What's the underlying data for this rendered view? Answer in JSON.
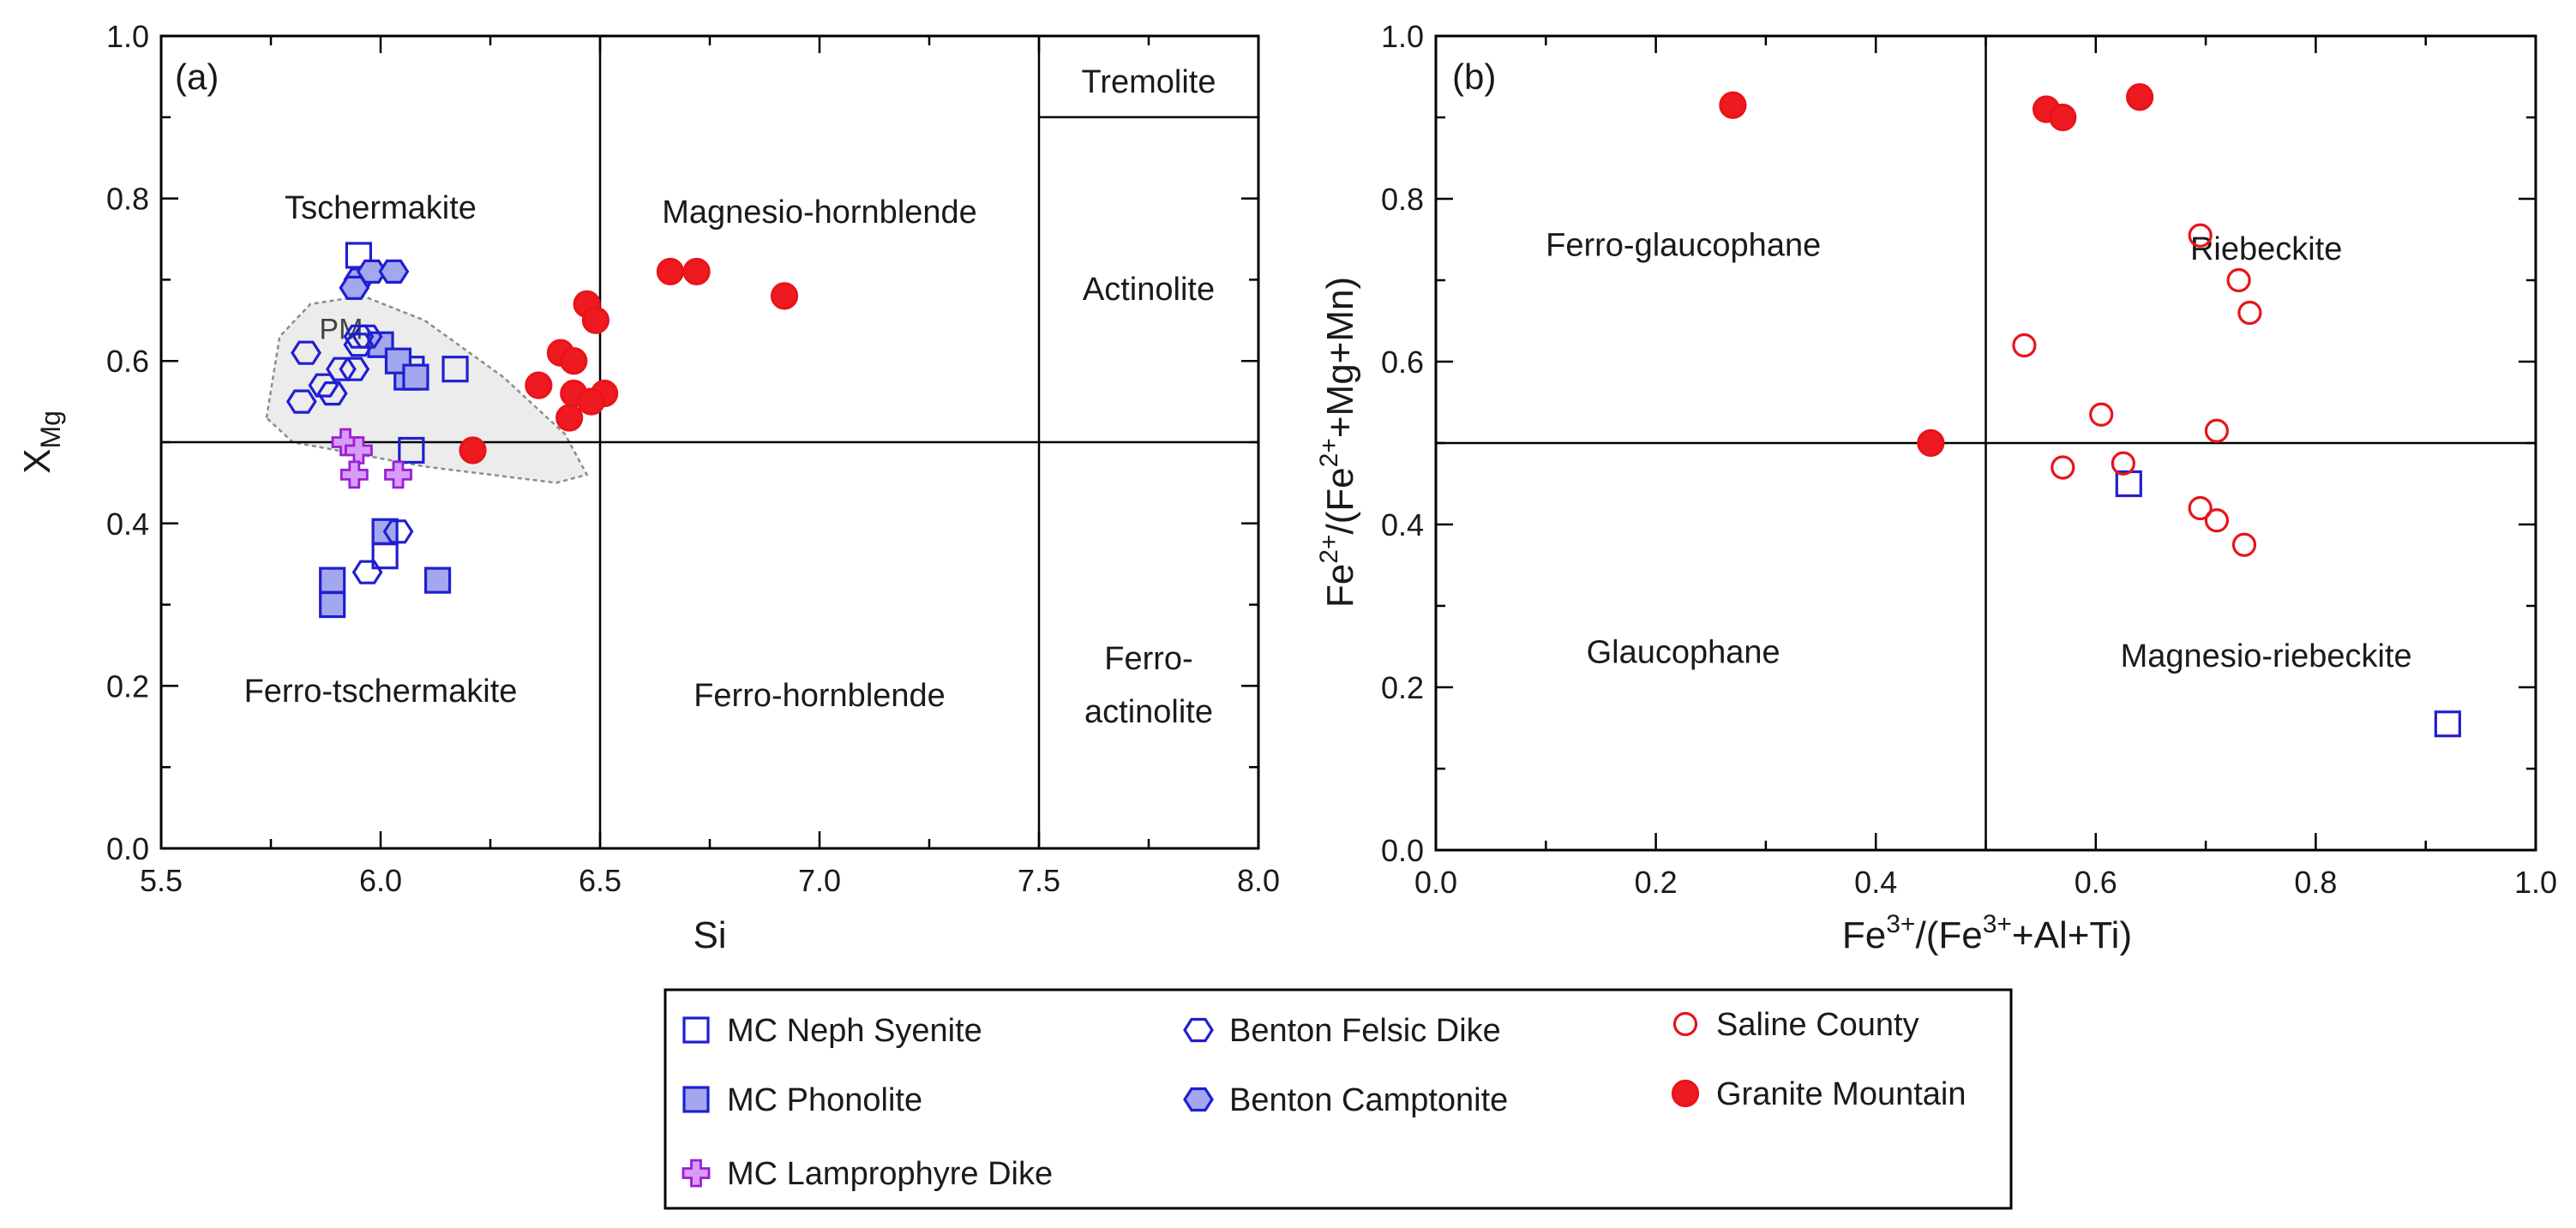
{
  "chart_data": [
    {
      "id": "a",
      "type": "scatter",
      "panel_label": "(a)",
      "xlabel": "Si",
      "ylabel": "X",
      "ylabel_sub": "Mg",
      "xlim": [
        5.5,
        8.0
      ],
      "ylim": [
        0.0,
        1.0
      ],
      "xticks": [
        5.5,
        6.0,
        6.5,
        7.0,
        7.5,
        8.0
      ],
      "xtick_labels": [
        "5.5",
        "6.0",
        "6.5",
        "7.0",
        "7.5",
        "8.0"
      ],
      "yticks": [
        0.0,
        0.2,
        0.4,
        0.6,
        0.8,
        1.0
      ],
      "ytick_labels": [
        "0.0",
        "0.2",
        "0.4",
        "0.6",
        "0.8",
        "1.0"
      ],
      "x_minor_step": 0.25,
      "y_minor_step": 0.1,
      "field_lines": [
        {
          "x1": 6.5,
          "y1": 0.0,
          "x2": 6.5,
          "y2": 1.0
        },
        {
          "x1": 7.5,
          "y1": 0.0,
          "x2": 7.5,
          "y2": 1.0
        },
        {
          "x1": 5.5,
          "y1": 0.5,
          "x2": 8.0,
          "y2": 0.5
        },
        {
          "x1": 7.5,
          "y1": 0.9,
          "x2": 8.0,
          "y2": 0.9
        }
      ],
      "field_labels": [
        {
          "text": "Tschermakite",
          "x": 6.0,
          "y": 0.79
        },
        {
          "text": "Magnesio-hornblende",
          "x": 7.0,
          "y": 0.785
        },
        {
          "text": "Tremolite",
          "x": 7.75,
          "y": 0.945
        },
        {
          "text": "Actinolite",
          "x": 7.75,
          "y": 0.69
        },
        {
          "text": "Ferro-tschermakite",
          "x": 6.0,
          "y": 0.195
        },
        {
          "text": "Ferro-hornblende",
          "x": 7.0,
          "y": 0.19
        },
        {
          "text": "Ferro-",
          "x": 7.75,
          "y": 0.235
        },
        {
          "text": "actinolite",
          "x": 7.75,
          "y": 0.17
        }
      ],
      "region": {
        "label": "PM",
        "label_at": [
          5.91,
          0.64
        ],
        "polygon": [
          [
            5.74,
            0.53
          ],
          [
            5.77,
            0.63
          ],
          [
            5.84,
            0.67
          ],
          [
            5.96,
            0.68
          ],
          [
            6.1,
            0.65
          ],
          [
            6.28,
            0.58
          ],
          [
            6.42,
            0.51
          ],
          [
            6.47,
            0.46
          ],
          [
            6.4,
            0.45
          ],
          [
            6.1,
            0.47
          ],
          [
            5.8,
            0.5
          ]
        ]
      },
      "series": [
        {
          "name": "MC Neph Syenite",
          "marker": "square",
          "filled": false,
          "points": [
            [
              5.95,
              0.73
            ],
            [
              6.17,
              0.59
            ],
            [
              6.07,
              0.49
            ],
            [
              6.01,
              0.36
            ],
            [
              6.07,
              0.59
            ]
          ]
        },
        {
          "name": "MC Phonolite",
          "marker": "square",
          "filled": true,
          "points": [
            [
              6.0,
              0.62
            ],
            [
              6.06,
              0.58
            ],
            [
              6.04,
              0.6
            ],
            [
              6.08,
              0.58
            ],
            [
              5.89,
              0.33
            ],
            [
              5.89,
              0.3
            ],
            [
              6.01,
              0.39
            ],
            [
              6.13,
              0.33
            ]
          ]
        },
        {
          "name": "MC Lamprophyre Dike",
          "marker": "plus",
          "filled": true,
          "points": [
            [
              5.92,
              0.5
            ],
            [
              5.95,
              0.49
            ],
            [
              5.94,
              0.46
            ],
            [
              6.04,
              0.46
            ]
          ]
        },
        {
          "name": "Benton Felsic Dike",
          "marker": "hexagon",
          "filled": false,
          "points": [
            [
              5.83,
              0.61
            ],
            [
              5.87,
              0.57
            ],
            [
              5.89,
              0.56
            ],
            [
              5.91,
              0.59
            ],
            [
              5.95,
              0.63
            ],
            [
              5.95,
              0.62
            ],
            [
              5.94,
              0.59
            ],
            [
              5.97,
              0.63
            ],
            [
              5.82,
              0.55
            ],
            [
              5.97,
              0.34
            ],
            [
              6.04,
              0.39
            ]
          ]
        },
        {
          "name": "Benton Camptonite",
          "marker": "hexagon",
          "filled": true,
          "points": [
            [
              5.95,
              0.7
            ],
            [
              5.98,
              0.71
            ],
            [
              6.03,
              0.71
            ],
            [
              5.94,
              0.69
            ]
          ]
        },
        {
          "name": "Granite Mountain",
          "marker": "circle",
          "filled": true,
          "points": [
            [
              6.66,
              0.71
            ],
            [
              6.72,
              0.71
            ],
            [
              6.92,
              0.68
            ],
            [
              6.47,
              0.67
            ],
            [
              6.49,
              0.65
            ],
            [
              6.41,
              0.61
            ],
            [
              6.44,
              0.6
            ],
            [
              6.36,
              0.57
            ],
            [
              6.44,
              0.56
            ],
            [
              6.51,
              0.56
            ],
            [
              6.48,
              0.55
            ],
            [
              6.43,
              0.53
            ],
            [
              6.21,
              0.49
            ]
          ]
        }
      ]
    },
    {
      "id": "b",
      "type": "scatter",
      "panel_label": "(b)",
      "xlabel_parts": [
        "Fe",
        "3+",
        "/(Fe",
        "3+",
        "+Al+Ti)"
      ],
      "ylabel_parts": [
        "Fe",
        "2+",
        "/(Fe",
        "2+",
        "+Mg+Mn)"
      ],
      "xlim": [
        0.0,
        1.0
      ],
      "ylim": [
        0.0,
        1.0
      ],
      "xticks": [
        0.0,
        0.2,
        0.4,
        0.6,
        0.8,
        1.0
      ],
      "xtick_labels": [
        "0.0",
        "0.2",
        "0.4",
        "0.6",
        "0.8",
        "1.0"
      ],
      "yticks": [
        0.0,
        0.2,
        0.4,
        0.6,
        0.8,
        1.0
      ],
      "ytick_labels": [
        "0.0",
        "0.2",
        "0.4",
        "0.6",
        "0.8",
        "1.0"
      ],
      "x_minor_step": 0.1,
      "y_minor_step": 0.1,
      "field_lines": [
        {
          "x1": 0.5,
          "y1": 0.0,
          "x2": 0.5,
          "y2": 1.0
        },
        {
          "x1": 0.0,
          "y1": 0.5,
          "x2": 1.0,
          "y2": 0.5
        }
      ],
      "field_labels": [
        {
          "text": "Ferro-glaucophane",
          "x": 0.225,
          "y": 0.745
        },
        {
          "text": "Riebeckite",
          "x": 0.755,
          "y": 0.74
        },
        {
          "text": "Glaucophane",
          "x": 0.225,
          "y": 0.245
        },
        {
          "text": "Magnesio-riebeckite",
          "x": 0.755,
          "y": 0.24
        }
      ],
      "series": [
        {
          "name": "MC Neph Syenite",
          "marker": "square",
          "filled": false,
          "points": [
            [
              0.63,
              0.45
            ],
            [
              0.92,
              0.155
            ]
          ]
        },
        {
          "name": "Saline County",
          "marker": "circle",
          "filled": false,
          "points": [
            [
              0.695,
              0.755
            ],
            [
              0.73,
              0.7
            ],
            [
              0.74,
              0.66
            ],
            [
              0.535,
              0.62
            ],
            [
              0.605,
              0.535
            ],
            [
              0.71,
              0.515
            ],
            [
              0.625,
              0.475
            ],
            [
              0.57,
              0.47
            ],
            [
              0.695,
              0.42
            ],
            [
              0.71,
              0.405
            ],
            [
              0.735,
              0.375
            ]
          ]
        },
        {
          "name": "Granite Mountain",
          "marker": "circle",
          "filled": true,
          "points": [
            [
              0.27,
              0.915
            ],
            [
              0.555,
              0.91
            ],
            [
              0.57,
              0.9
            ],
            [
              0.64,
              0.925
            ],
            [
              0.45,
              0.5
            ]
          ]
        }
      ]
    }
  ],
  "legend": {
    "columns": [
      [
        "MC Neph Syenite",
        "MC Phonolite",
        "MC Lamprophyre Dike"
      ],
      [
        "Benton Felsic Dike",
        "Benton Camptonite"
      ],
      [
        "Saline County",
        "Granite Mountain"
      ]
    ]
  },
  "styles": {
    "MC Neph Syenite": {
      "marker": "square",
      "stroke": "#1f1fd1",
      "fill": "none"
    },
    "MC Phonolite": {
      "marker": "square",
      "stroke": "#1f1fd1",
      "fill": "#a3a8ee"
    },
    "MC Lamprophyre Dike": {
      "marker": "plus",
      "stroke": "#9a1fd6",
      "fill": "#d89cf7"
    },
    "Benton Felsic Dike": {
      "marker": "hexagon",
      "stroke": "#1f1fd1",
      "fill": "none"
    },
    "Benton Camptonite": {
      "marker": "hexagon",
      "stroke": "#1f1fd1",
      "fill": "#a3a8ee"
    },
    "Saline County": {
      "marker": "circle",
      "stroke": "#e8141b",
      "fill": "none"
    },
    "Granite Mountain": {
      "marker": "circle",
      "stroke": "#e8141b",
      "fill": "#ee1a1f"
    }
  },
  "colors": {
    "axis": "#000000",
    "text": "#1a1a1a",
    "region_fill": "#ececec",
    "region_stroke": "#8c8c8c"
  }
}
